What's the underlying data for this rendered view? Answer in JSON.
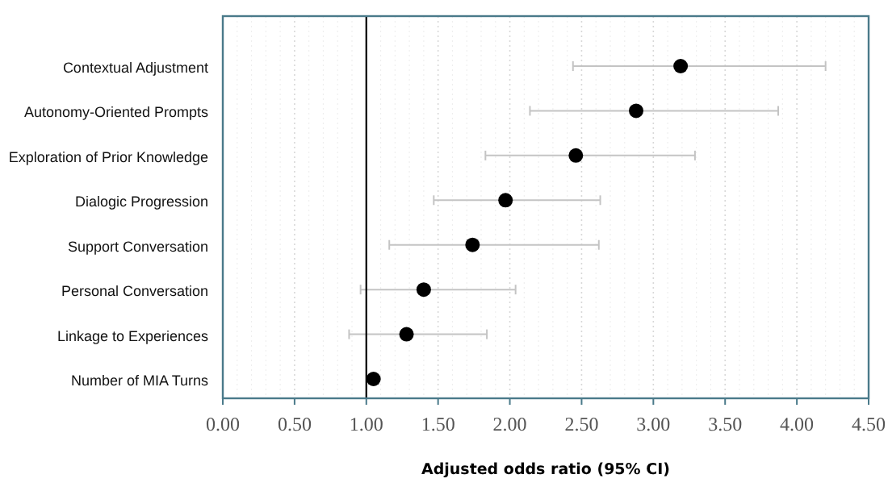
{
  "chart_data": {
    "type": "scatter",
    "orientation": "horizontal",
    "xlabel": "Adjusted odds ratio (95% CI)",
    "categories": [
      "Contextual Adjustment",
      "Autonomy-Oriented Prompts",
      "Exploration of Prior Knowledge",
      "Dialogic Progression",
      "Support Conversation",
      "Personal Conversation",
      "Linkage to Experiences",
      "Number of MIA Turns"
    ],
    "values": [
      3.19,
      2.88,
      2.46,
      1.97,
      1.74,
      1.4,
      1.28,
      1.05
    ],
    "errors": [
      [
        2.44,
        4.2
      ],
      [
        2.14,
        3.87
      ],
      [
        1.83,
        3.29
      ],
      [
        1.47,
        2.63
      ],
      [
        1.16,
        2.62
      ],
      [
        0.96,
        2.04
      ],
      [
        0.88,
        1.84
      ],
      null
    ],
    "color": "#000000",
    "marker": "circle",
    "xlim": [
      0,
      4.5
    ],
    "xticks": [
      {
        "value": 0,
        "label": "0.00"
      },
      {
        "value": 0.5,
        "label": "0.50"
      },
      {
        "value": 1,
        "label": "1.00"
      },
      {
        "value": 1.5,
        "label": "1.50"
      },
      {
        "value": 2,
        "label": "2.00"
      },
      {
        "value": 2.5,
        "label": "2.50"
      },
      {
        "value": 3,
        "label": "3.00"
      },
      {
        "value": 3.5,
        "label": "3.50"
      },
      {
        "value": 4,
        "label": "4.00"
      },
      {
        "value": 4.5,
        "label": "4.50"
      }
    ],
    "grid": "x",
    "ref_lines": [
      {
        "axis": "x",
        "value": 1,
        "color": "#000000"
      }
    ]
  }
}
